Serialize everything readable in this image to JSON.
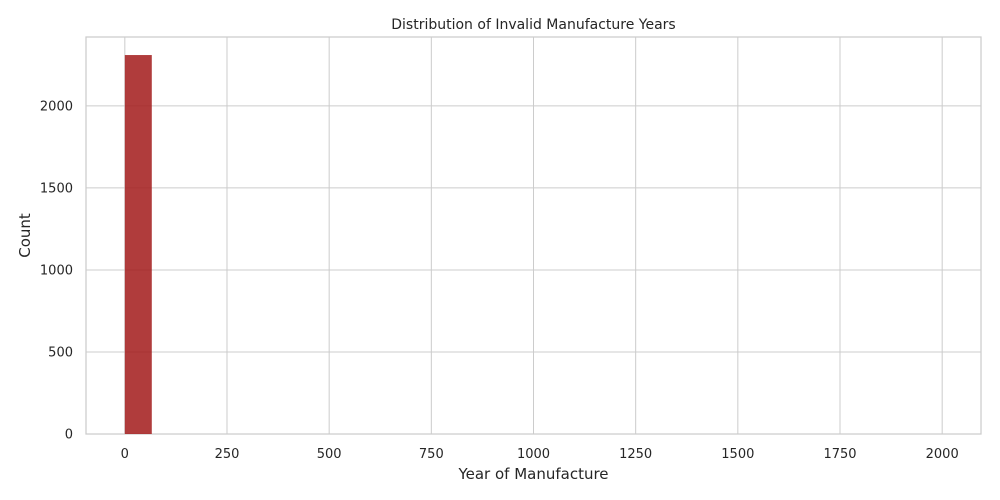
{
  "chart_data": {
    "type": "bar",
    "title": "Distribution of Invalid Manufacture Years",
    "xlabel": "Year of Manufacture",
    "ylabel": "Count",
    "xlim": [
      -95,
      2095
    ],
    "ylim": [
      0,
      2420
    ],
    "x_ticks": [
      0,
      250,
      500,
      750,
      1000,
      1250,
      1500,
      1750,
      2000
    ],
    "x_tick_labels": [
      "0",
      "250",
      "500",
      "750",
      "1000",
      "1250",
      "1500",
      "1750",
      "2000"
    ],
    "y_ticks": [
      0,
      500,
      1000,
      1500,
      2000
    ],
    "y_tick_labels": [
      "0",
      "500",
      "1000",
      "1500",
      "2000"
    ],
    "grid": true,
    "bar_color": "#a31c1c",
    "bins": [
      {
        "start": 0,
        "end": 66,
        "count": 2310
      }
    ]
  }
}
